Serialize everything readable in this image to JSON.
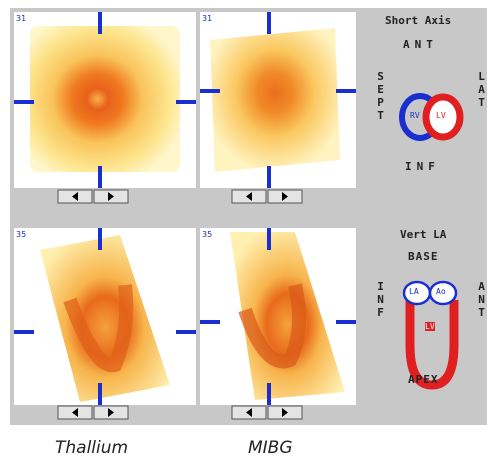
{
  "panels": [
    {
      "number": "31"
    },
    {
      "number": "31"
    },
    {
      "number": "35"
    },
    {
      "number": "35"
    }
  ],
  "short_axis": {
    "title": "Short Axis",
    "top": "ANT",
    "left": "SEPT",
    "right": "LAT",
    "bottom": "INF",
    "rv": "RV",
    "lv": "LV"
  },
  "vertical_la": {
    "title": "Vert LA",
    "top": "BASE",
    "left": "INF",
    "right": "ANT",
    "bottom": "APEX",
    "la": "LA",
    "ao": "Ao",
    "lv": "LV"
  },
  "captions": [
    "Thallium",
    "MIBG"
  ]
}
